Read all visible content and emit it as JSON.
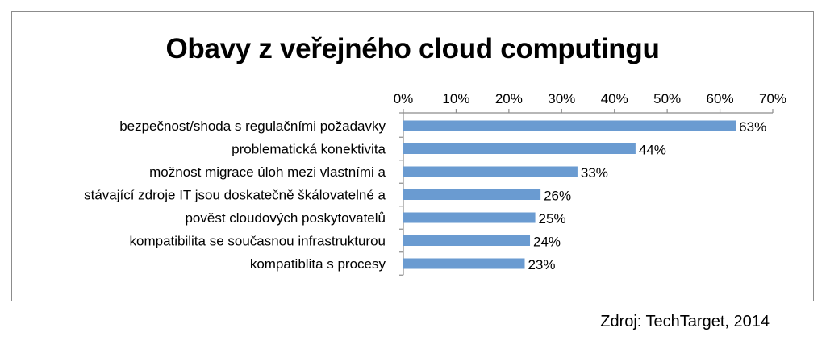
{
  "chart_data": {
    "type": "bar",
    "orientation": "horizontal",
    "title": "Obavy z veřejného cloud computingu",
    "categories": [
      "bezpečnost/shoda s regulačními požadavky",
      "problematická konektivita",
      "možnost migrace úloh mezi vlastními a",
      "stávající zdroje IT jsou doskatečně škálovatelné a",
      "pověst cloudových poskytovatelů",
      "kompatibilita se současnou infrastrukturou",
      "kompatiblita s procesy"
    ],
    "values": [
      63,
      44,
      33,
      26,
      25,
      24,
      23
    ],
    "value_labels": [
      "63%",
      "44%",
      "33%",
      "26%",
      "25%",
      "24%",
      "23%"
    ],
    "x_ticks": [
      "0%",
      "10%",
      "20%",
      "30%",
      "40%",
      "50%",
      "60%",
      "70%"
    ],
    "xlim": [
      0,
      70
    ],
    "x_axis_position": "top",
    "grid": false,
    "bar_color": "#6a9bd1"
  },
  "source": "Zdroj: TechTarget, 2014"
}
